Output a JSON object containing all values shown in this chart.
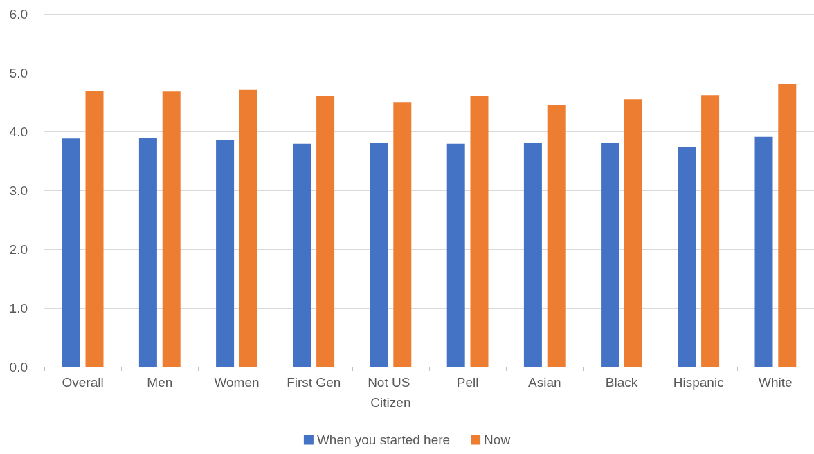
{
  "chart_data": {
    "type": "bar",
    "categories": [
      "Overall",
      "Men",
      "Women",
      "First Gen",
      "Not US Citizen",
      "Pell",
      "Asian",
      "Black",
      "Hispanic",
      "White"
    ],
    "series": [
      {
        "name": "When you started here",
        "color": "#4472c4",
        "values": [
          3.88,
          3.89,
          3.86,
          3.79,
          3.8,
          3.79,
          3.8,
          3.8,
          3.74,
          3.91
        ]
      },
      {
        "name": "Now",
        "color": "#ed7d31",
        "values": [
          4.69,
          4.68,
          4.71,
          4.61,
          4.49,
          4.6,
          4.46,
          4.55,
          4.62,
          4.8
        ]
      }
    ],
    "ylim": [
      0,
      6
    ],
    "yticks": [
      {
        "value": 0,
        "label": "0.0"
      },
      {
        "value": 1,
        "label": "1.0"
      },
      {
        "value": 2,
        "label": "2.0"
      },
      {
        "value": 3,
        "label": "3.0"
      },
      {
        "value": 4,
        "label": "4.0"
      },
      {
        "value": 5,
        "label": "5.0"
      },
      {
        "value": 6,
        "label": "6.0"
      }
    ],
    "grid": "y",
    "legend": "bottom"
  }
}
